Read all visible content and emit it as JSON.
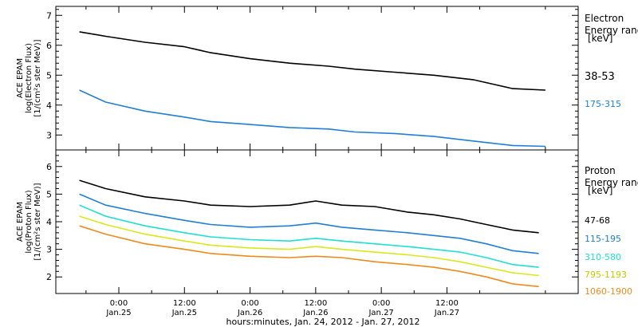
{
  "chart_data": [
    {
      "type": "line",
      "panel": "electron",
      "ylabel_lines": [
        "ACE EPAM",
        "log(Electron Flux)",
        "[1/(cm²s ster MeV)]"
      ],
      "ylim": [
        2.5,
        7.3
      ],
      "yticks": [
        "3",
        "4",
        "5",
        "6",
        "7"
      ],
      "legend_title": [
        "Electron",
        "Energy ranges",
        "[keV]"
      ],
      "series": [
        {
          "name": "38-53",
          "color": "#000000",
          "x": [
            0,
            0.2,
            0.5,
            0.8,
            1.0,
            1.3,
            1.6,
            1.9,
            2.1,
            2.4,
            2.7,
            3.0,
            3.3,
            3.55
          ],
          "values": [
            6.45,
            6.3,
            6.1,
            5.95,
            5.75,
            5.55,
            5.4,
            5.3,
            5.2,
            5.1,
            5.0,
            4.85,
            4.55,
            4.5
          ]
        },
        {
          "name": "175-315",
          "color": "#1f7fd6",
          "x": [
            0,
            0.2,
            0.5,
            0.8,
            1.0,
            1.3,
            1.6,
            1.9,
            2.1,
            2.4,
            2.7,
            3.0,
            3.3,
            3.55
          ],
          "values": [
            4.5,
            4.1,
            3.8,
            3.6,
            3.45,
            3.35,
            3.25,
            3.2,
            3.1,
            3.05,
            2.95,
            2.8,
            2.65,
            2.62
          ]
        }
      ]
    },
    {
      "type": "line",
      "panel": "proton",
      "ylabel_lines": [
        "ACE EPAM",
        "log(Proton Flux)",
        "[1/(cm²s ster MeV)]"
      ],
      "ylim": [
        1.4,
        6.6
      ],
      "yticks": [
        "2",
        "3",
        "4",
        "5",
        "6"
      ],
      "legend_title": [
        "Proton",
        "Energy ranges",
        "[keV]"
      ],
      "series": [
        {
          "name": "47-68",
          "color": "#000000",
          "x": [
            0,
            0.2,
            0.5,
            0.8,
            1.0,
            1.3,
            1.6,
            1.8,
            2.0,
            2.25,
            2.5,
            2.7,
            2.9,
            3.1,
            3.3,
            3.5
          ],
          "values": [
            5.5,
            5.2,
            4.9,
            4.75,
            4.6,
            4.55,
            4.6,
            4.75,
            4.6,
            4.55,
            4.35,
            4.25,
            4.1,
            3.9,
            3.7,
            3.6
          ]
        },
        {
          "name": "115-195",
          "color": "#1f7fd6",
          "x": [
            0,
            0.2,
            0.5,
            0.8,
            1.0,
            1.3,
            1.6,
            1.8,
            2.0,
            2.25,
            2.5,
            2.7,
            2.9,
            3.1,
            3.3,
            3.5
          ],
          "values": [
            5.0,
            4.6,
            4.3,
            4.05,
            3.9,
            3.8,
            3.85,
            3.95,
            3.8,
            3.7,
            3.6,
            3.5,
            3.4,
            3.2,
            2.95,
            2.85
          ]
        },
        {
          "name": "310-580",
          "color": "#1fe0cf",
          "x": [
            0,
            0.2,
            0.5,
            0.8,
            1.0,
            1.3,
            1.6,
            1.8,
            2.0,
            2.25,
            2.5,
            2.7,
            2.9,
            3.1,
            3.3,
            3.5
          ],
          "values": [
            4.6,
            4.2,
            3.85,
            3.6,
            3.45,
            3.35,
            3.3,
            3.4,
            3.3,
            3.2,
            3.1,
            3.0,
            2.9,
            2.7,
            2.45,
            2.35
          ]
        },
        {
          "name": "795-1193",
          "color": "#d8e81c",
          "x": [
            0,
            0.2,
            0.5,
            0.8,
            1.0,
            1.3,
            1.6,
            1.8,
            2.0,
            2.25,
            2.5,
            2.7,
            2.9,
            3.1,
            3.3,
            3.5
          ],
          "values": [
            4.2,
            3.9,
            3.55,
            3.3,
            3.15,
            3.05,
            3.0,
            3.1,
            3.0,
            2.9,
            2.8,
            2.7,
            2.55,
            2.35,
            2.15,
            2.05
          ]
        },
        {
          "name": "1060-1900",
          "color": "#f08a1c",
          "x": [
            0,
            0.2,
            0.5,
            0.8,
            1.0,
            1.3,
            1.6,
            1.8,
            2.0,
            2.25,
            2.5,
            2.7,
            2.9,
            3.1,
            3.3,
            3.5
          ],
          "values": [
            3.85,
            3.55,
            3.2,
            3.0,
            2.85,
            2.75,
            2.7,
            2.75,
            2.7,
            2.55,
            2.45,
            2.35,
            2.2,
            2.0,
            1.75,
            1.65
          ]
        }
      ]
    }
  ],
  "x_axis": {
    "ticks": [
      {
        "time": "0:00",
        "date": "Jan.25"
      },
      {
        "time": "12:00",
        "date": "Jan.25"
      },
      {
        "time": "0:00",
        "date": "Jan.26"
      },
      {
        "time": "12:00",
        "date": "Jan.26"
      },
      {
        "time": "0:00",
        "date": "Jan.27"
      },
      {
        "time": "12:00",
        "date": "Jan.27"
      }
    ],
    "label": "hours:minutes, Jan. 24, 2012 - Jan. 27, 2012"
  }
}
